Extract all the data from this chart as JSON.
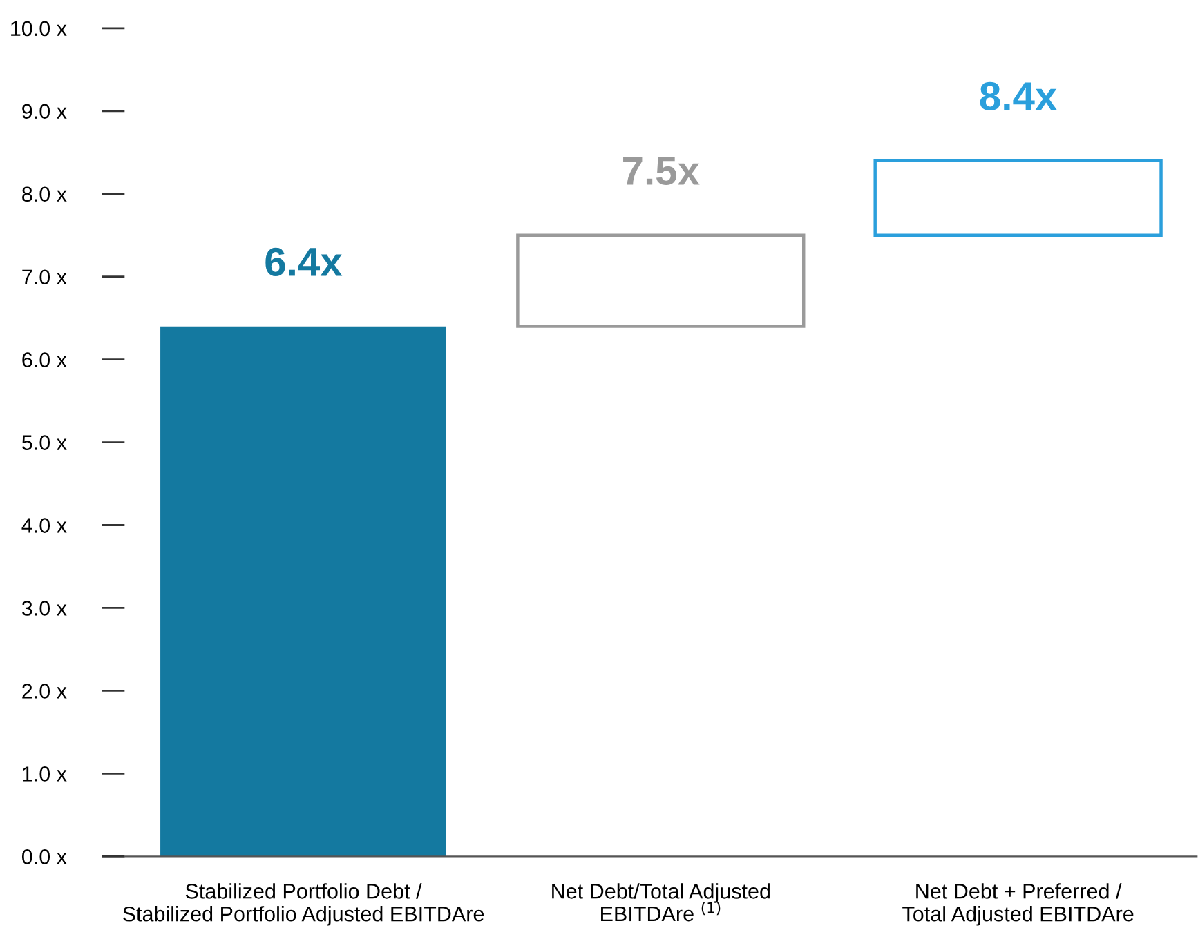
{
  "chart_data": {
    "type": "bar",
    "categories": [
      "Stabilized Portfolio Debt /\nStabilized Portfolio Adjusted EBITDAre",
      "Net Debt/Total Adjusted\nEBITDAre $^{(1)}$",
      "Net Debt + Preferred /\nTotal Adjusted EBITDAre"
    ],
    "values": [
      6.4,
      1.1,
      0.9
    ],
    "base": [
      0,
      6.4,
      7.5
    ],
    "colors": [
      "#1479a0",
      "#9a9a9a",
      "#2a9fdc"
    ],
    "value_labels": [
      "6.4x",
      "7.5x",
      "8.4x"
    ],
    "ylim": [
      0,
      10
    ],
    "yticks": [
      {
        "value": 0,
        "label": "0.0 x"
      },
      {
        "value": 1,
        "label": "1.0 x"
      },
      {
        "value": 2,
        "label": "2.0 x"
      },
      {
        "value": 3,
        "label": "3.0 x"
      },
      {
        "value": 4,
        "label": "4.0 x"
      },
      {
        "value": 5,
        "label": "5.0 x"
      },
      {
        "value": 6,
        "label": "6.0 x"
      },
      {
        "value": 7,
        "label": "7.0 x"
      },
      {
        "value": 8,
        "label": "8.0 x"
      },
      {
        "value": 9,
        "label": "9.0 x"
      },
      {
        "value": 10,
        "label": "10.0 x"
      }
    ],
    "grid": false,
    "legend": false
  }
}
